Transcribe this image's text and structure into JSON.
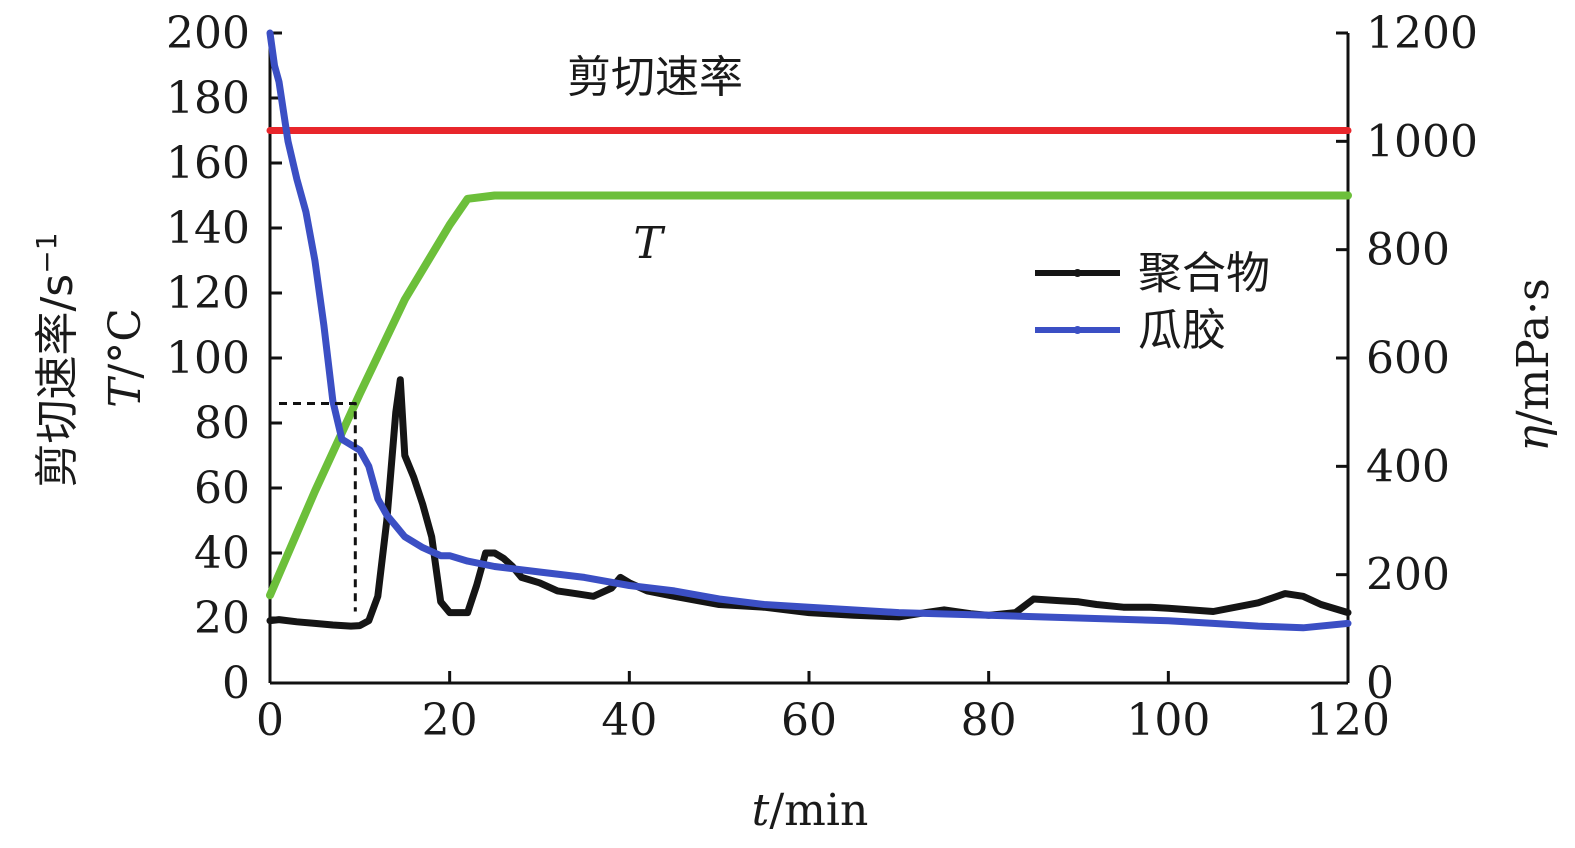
{
  "chart_data": {
    "type": "line",
    "xlabel": {
      "var": "t",
      "unit": "/min"
    },
    "ylabel_left": {
      "line1": "剪切速率/s",
      "line1_sup": "−1",
      "line2_var": "T",
      "line2_unit": "/°C"
    },
    "ylabel_right": {
      "var": "η",
      "unit": "/mPa·s"
    },
    "xlim": [
      0,
      120
    ],
    "ylim_left": [
      0,
      200
    ],
    "ylim_right": [
      0,
      1200
    ],
    "x_ticks": [
      "0",
      "20",
      "40",
      "60",
      "80",
      "100",
      "120"
    ],
    "y_left_ticks": [
      "0",
      "20",
      "40",
      "60",
      "80",
      "100",
      "120",
      "140",
      "160",
      "180",
      "200"
    ],
    "y_right_ticks": [
      "0",
      "200",
      "400",
      "600",
      "800",
      "1000",
      "1200"
    ],
    "annotations": {
      "shear_rate": "剪切速率",
      "temperature": "T"
    },
    "legend": {
      "position": "top-right",
      "entries": [
        "聚合物",
        "瓜胶"
      ]
    },
    "colors": {
      "shear": "#e8262b",
      "temperature": "#6cbf3a",
      "polymer": "#151515",
      "guar": "#3b4fc4"
    },
    "series": [
      {
        "key": "shear",
        "axis": "left",
        "x": [
          0,
          5,
          10,
          20,
          30,
          40,
          60,
          80,
          100,
          120
        ],
        "values": [
          170,
          170,
          170,
          170,
          170,
          170,
          170,
          170,
          170,
          170
        ]
      },
      {
        "key": "temperature",
        "axis": "left",
        "x": [
          0,
          5,
          10,
          15,
          20,
          22,
          25,
          40,
          60,
          80,
          100,
          120
        ],
        "values": [
          27,
          59,
          89,
          118,
          141,
          149,
          150,
          150,
          150,
          150,
          150,
          150
        ]
      },
      {
        "name": "聚合物",
        "axis": "right",
        "x": [
          0,
          1,
          3,
          5,
          7,
          9,
          10,
          11,
          12,
          13,
          14,
          14.5,
          15,
          16,
          17,
          18,
          19,
          20,
          21,
          22,
          23,
          24,
          25,
          26,
          27,
          28,
          30,
          32,
          34,
          36,
          38,
          39,
          40,
          42,
          45,
          50,
          55,
          60,
          65,
          70,
          73,
          75,
          78,
          80,
          83,
          85,
          88,
          90,
          92,
          95,
          98,
          100,
          105,
          110,
          113,
          115,
          117,
          120
        ],
        "values": [
          115,
          117,
          113,
          110,
          107,
          105,
          106,
          115,
          160,
          300,
          500,
          560,
          420,
          380,
          330,
          270,
          150,
          130,
          130,
          130,
          180,
          240,
          240,
          230,
          215,
          195,
          185,
          170,
          165,
          160,
          175,
          195,
          185,
          170,
          160,
          145,
          140,
          130,
          125,
          122,
          130,
          135,
          128,
          125,
          130,
          155,
          152,
          150,
          145,
          140,
          140,
          138,
          132,
          148,
          165,
          160,
          145,
          130
        ]
      },
      {
        "name": "瓜胶",
        "axis": "right",
        "x": [
          0,
          0.5,
          1,
          2,
          3,
          4,
          5,
          6,
          7,
          8,
          9,
          10,
          11,
          12,
          13,
          14,
          15,
          17,
          19,
          20,
          22,
          25,
          30,
          35,
          40,
          45,
          50,
          55,
          60,
          70,
          80,
          90,
          100,
          105,
          110,
          115,
          120
        ],
        "values": [
          1200,
          1140,
          1110,
          1000,
          930,
          870,
          780,
          660,
          520,
          450,
          440,
          430,
          400,
          340,
          310,
          290,
          270,
          250,
          235,
          235,
          225,
          215,
          205,
          195,
          180,
          170,
          155,
          145,
          140,
          130,
          125,
          120,
          115,
          110,
          105,
          102,
          110
        ]
      },
      {
        "key": "marker",
        "axis": "left",
        "x": [
          1,
          9.5,
          9.5
        ],
        "values": [
          86,
          86,
          22
        ]
      }
    ]
  }
}
